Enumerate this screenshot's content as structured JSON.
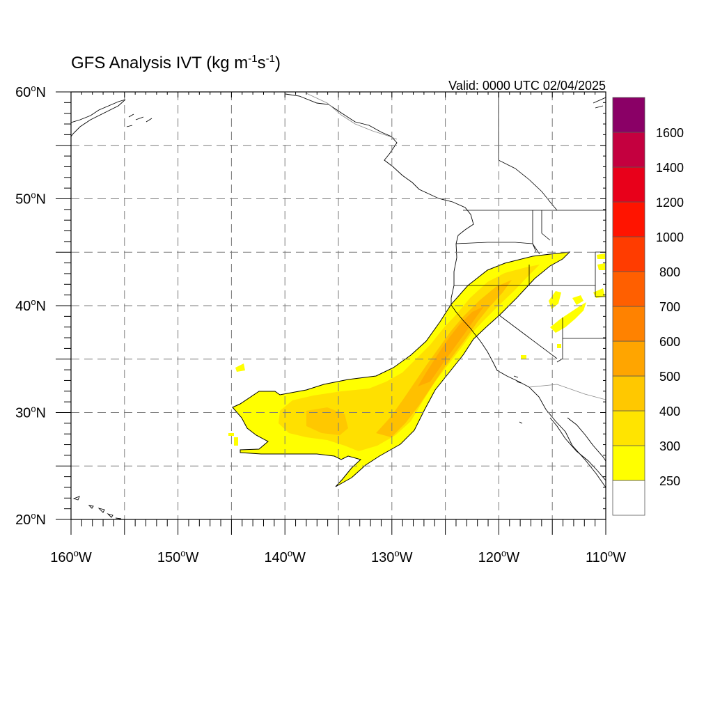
{
  "title": {
    "main": "GFS Analysis IVT (kg m",
    "sup1": "-1",
    "mid": "s",
    "sup2": "-1",
    "close": ")"
  },
  "valid_text": "Valid: 0000 UTC 02/04/2025",
  "map": {
    "lon_range": [
      -160,
      -110
    ],
    "lat_range": [
      20,
      60
    ],
    "x_ticks": [
      {
        "lon": -160,
        "num": "160",
        "hemi": "W"
      },
      {
        "lon": -150,
        "num": "150",
        "hemi": "W"
      },
      {
        "lon": -140,
        "num": "140",
        "hemi": "W"
      },
      {
        "lon": -130,
        "num": "130",
        "hemi": "W"
      },
      {
        "lon": -120,
        "num": "120",
        "hemi": "W"
      },
      {
        "lon": -110,
        "num": "110",
        "hemi": "W"
      }
    ],
    "y_ticks": [
      {
        "lat": 60,
        "num": "60",
        "hemi": "N"
      },
      {
        "lat": 50,
        "num": "50",
        "hemi": "N"
      },
      {
        "lat": 40,
        "num": "40",
        "hemi": "N"
      },
      {
        "lat": 30,
        "num": "30",
        "hemi": "N"
      },
      {
        "lat": 20,
        "num": "20",
        "hemi": "N"
      }
    ],
    "grid_lon": [
      -155,
      -150,
      -145,
      -140,
      -135,
      -130,
      -125,
      -120,
      -115
    ],
    "grid_lat": [
      25,
      30,
      35,
      40,
      45,
      50,
      55
    ]
  },
  "colorbar": {
    "levels": [
      {
        "color": "#ffffff",
        "label": "250"
      },
      {
        "color": "#ffff00",
        "label": "300"
      },
      {
        "color": "#ffe400",
        "label": "400"
      },
      {
        "color": "#ffc800",
        "label": "500"
      },
      {
        "color": "#ffa500",
        "label": "600"
      },
      {
        "color": "#ff8200",
        "label": "700"
      },
      {
        "color": "#ff5f00",
        "label": "800"
      },
      {
        "color": "#ff3c00",
        "label": "1000"
      },
      {
        "color": "#ff1400",
        "label": "1200"
      },
      {
        "color": "#e8001a",
        "label": "1400"
      },
      {
        "color": "#c4003f",
        "label": "1600"
      },
      {
        "color": "#8a0066",
        "label": ""
      },
      {
        "color": "#5a0090",
        "label": ""
      }
    ]
  }
}
